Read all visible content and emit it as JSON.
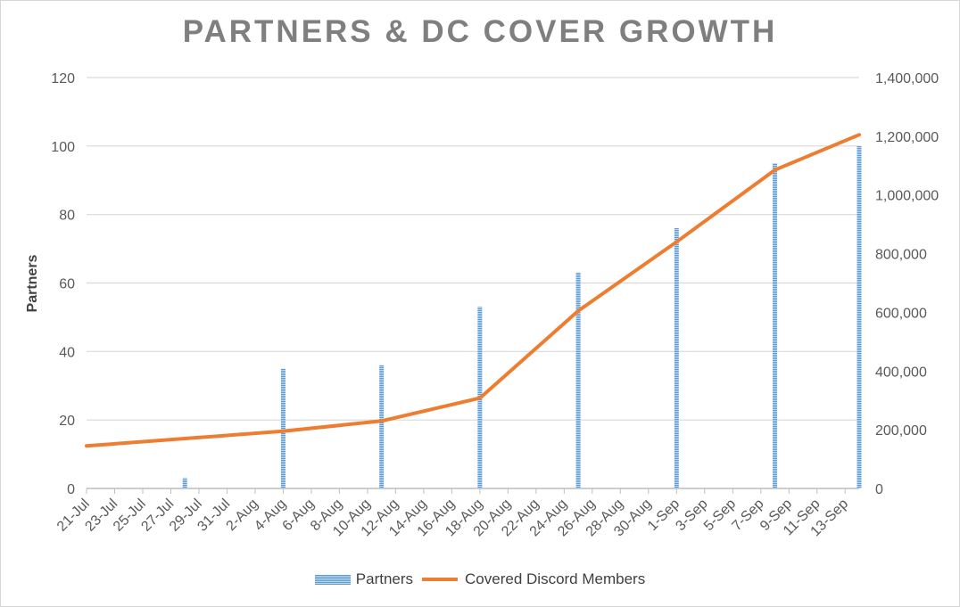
{
  "chart_data": {
    "type": "bar",
    "title": "PARTNERS & DC COVER GROWTH",
    "ylabel": "Partners",
    "ylim": [
      0,
      120
    ],
    "y_ticks": [
      "0",
      "20",
      "40",
      "60",
      "80",
      "100",
      "120"
    ],
    "y2lim": [
      0,
      1400000
    ],
    "y2_ticks": [
      "0",
      "200,000",
      "400,000",
      "600,000",
      "800,000",
      "1,000,000",
      "1,200,000",
      "1,400,000"
    ],
    "x_tick_labels": [
      "21-Jul",
      "23-Jul",
      "25-Jul",
      "27-Jul",
      "29-Jul",
      "31-Jul",
      "2-Aug",
      "4-Aug",
      "6-Aug",
      "8-Aug",
      "10-Aug",
      "12-Aug",
      "14-Aug",
      "16-Aug",
      "18-Aug",
      "20-Aug",
      "22-Aug",
      "24-Aug",
      "26-Aug",
      "28-Aug",
      "30-Aug",
      "1-Sep",
      "3-Sep",
      "5-Sep",
      "7-Sep",
      "9-Sep",
      "11-Sep",
      "13-Sep"
    ],
    "x_range": [
      "2023-07-21",
      "2023-09-14"
    ],
    "grid": true,
    "legend_position": "bottom",
    "series": [
      {
        "name": "Partners",
        "type": "bar",
        "axis": "left",
        "color": "#5b9bd5",
        "points": [
          {
            "x": "2023-07-28",
            "y": 3
          },
          {
            "x": "2023-08-04",
            "y": 35
          },
          {
            "x": "2023-08-11",
            "y": 36
          },
          {
            "x": "2023-08-18",
            "y": 53
          },
          {
            "x": "2023-08-25",
            "y": 63
          },
          {
            "x": "2023-09-01",
            "y": 76
          },
          {
            "x": "2023-09-08",
            "y": 95
          },
          {
            "x": "2023-09-14",
            "y": 100
          }
        ]
      },
      {
        "name": "Covered Discord Members",
        "type": "line",
        "axis": "right",
        "color": "#ed7d31",
        "points": [
          {
            "x": "2023-07-21",
            "y": 145000
          },
          {
            "x": "2023-07-28",
            "y": 170000
          },
          {
            "x": "2023-08-04",
            "y": 195000
          },
          {
            "x": "2023-08-11",
            "y": 230000
          },
          {
            "x": "2023-08-18",
            "y": 308000
          },
          {
            "x": "2023-08-25",
            "y": 605000
          },
          {
            "x": "2023-09-01",
            "y": 840000
          },
          {
            "x": "2023-09-08",
            "y": 1085000
          },
          {
            "x": "2023-09-14",
            "y": 1205000
          }
        ]
      }
    ]
  }
}
